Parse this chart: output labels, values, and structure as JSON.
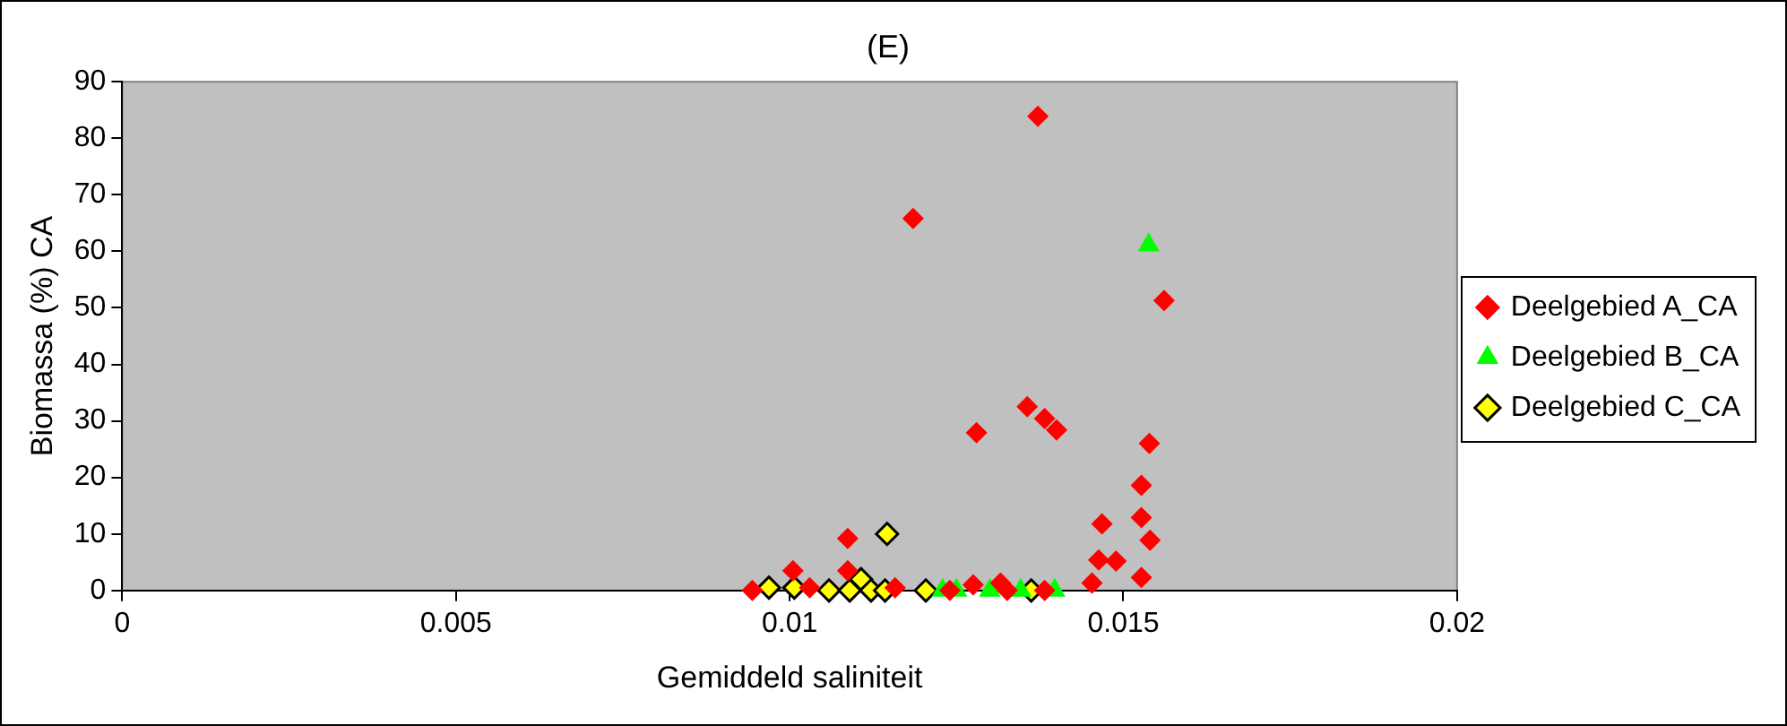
{
  "chart_data": {
    "type": "scatter",
    "title": "(E)",
    "xlabel": "Gemiddeld saliniteit",
    "ylabel": "Biomassa (%) CA",
    "xlim": [
      0,
      0.02
    ],
    "xticks": [
      0,
      0.005,
      0.01,
      0.015,
      0.02
    ],
    "ylim": [
      0,
      90
    ],
    "yticks": [
      0,
      10,
      20,
      30,
      40,
      50,
      60,
      70,
      80,
      90
    ],
    "grid": false,
    "legend": "right",
    "series": [
      {
        "name": "Deelgebied A_CA",
        "color": "#ff0000",
        "marker": "diamond",
        "x": [
          0.00944,
          0.01005,
          0.0103,
          0.01087,
          0.01087,
          0.01158,
          0.0124,
          0.01275,
          0.01316,
          0.01326,
          0.01382,
          0.01185,
          0.01372,
          0.01356,
          0.01382,
          0.014,
          0.0128,
          0.01561,
          0.01539,
          0.01527,
          0.01527,
          0.01468,
          0.0154,
          0.01527,
          0.01463,
          0.01489,
          0.01453
        ],
        "values": [
          0,
          3.5,
          0.5,
          9.2,
          3.5,
          0.5,
          0,
          1,
          1.3,
          0,
          0,
          65.8,
          83.9,
          32.5,
          30.4,
          28.4,
          27.9,
          51.3,
          26,
          18.6,
          12.9,
          11.8,
          8.9,
          2.3,
          5.4,
          5.2,
          1.3
        ]
      },
      {
        "name": "Deelgebied B_CA",
        "color": "#00ff00",
        "marker": "triangle",
        "x": [
          0.01229,
          0.0125,
          0.013,
          0.01346,
          0.01397,
          0.01538
        ],
        "values": [
          0,
          0,
          0,
          0,
          0,
          61.1
        ]
      },
      {
        "name": "Deelgebied C_CA",
        "color": "#ffff00",
        "marker": "diamond",
        "x": [
          0.00969,
          0.01007,
          0.01059,
          0.0109,
          0.01107,
          0.01122,
          0.01143,
          0.01146,
          0.01204,
          0.01362
        ],
        "values": [
          0.5,
          0.5,
          0,
          0,
          2,
          0,
          0,
          10,
          0,
          0
        ]
      }
    ]
  }
}
